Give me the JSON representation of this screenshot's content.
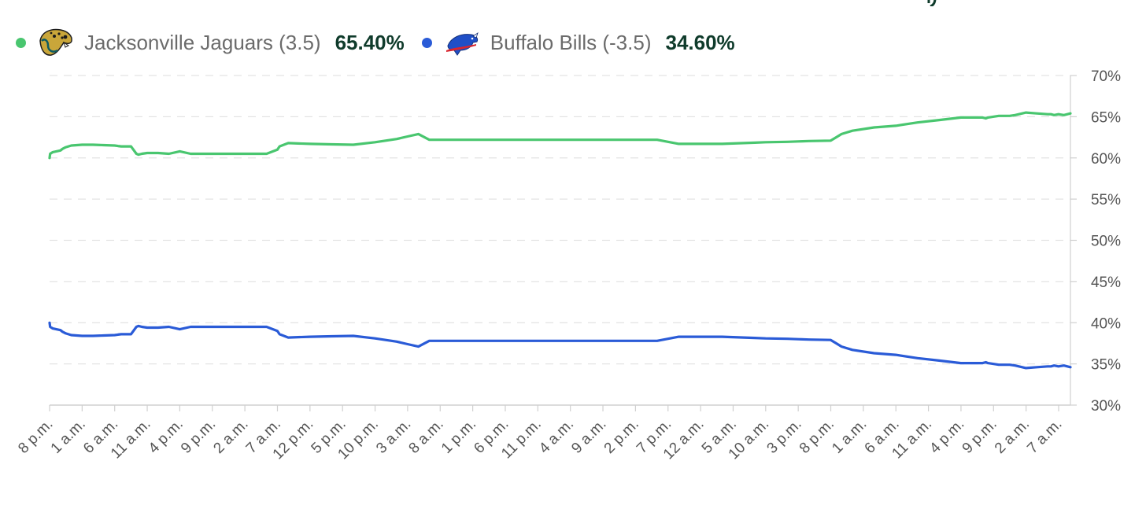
{
  "legend": {
    "team1": {
      "name": "Jacksonville Jaguars (3.5)",
      "pct": "65.40%",
      "color": "#49c66f",
      "logo": "jaguar-head-icon"
    },
    "team2": {
      "name": "Buffalo Bills (-3.5)",
      "pct": "34.60%",
      "color": "#2a5bd7",
      "logo": "charging-buffalo-icon"
    }
  },
  "chart_data": {
    "type": "line",
    "title": "",
    "xlabel": "",
    "ylabel": "",
    "ylim": [
      30,
      70
    ],
    "y_ticks": [
      "70%",
      "65%",
      "60%",
      "55%",
      "50%",
      "45%",
      "40%",
      "35%",
      "30%"
    ],
    "y_tick_values": [
      70,
      65,
      60,
      55,
      50,
      45,
      40,
      35,
      30
    ],
    "grid": true,
    "legend_position": "top-left",
    "x_ticks": [
      "8 p.m.",
      "1 a.m.",
      "6 a.m.",
      "11 a.m.",
      "4 p.m.",
      "9 p.m.",
      "2 a.m.",
      "7 a.m.",
      "12 p.m.",
      "5 p.m.",
      "10 p.m.",
      "3 a.m.",
      "8 a.m.",
      "1 p.m.",
      "6 p.m.",
      "11 p.m.",
      "4 a.m.",
      "9 a.m.",
      "2 p.m.",
      "7 p.m.",
      "12 a.m.",
      "5 a.m.",
      "10 a.m.",
      "3 p.m.",
      "8 p.m.",
      "1 a.m.",
      "6 a.m.",
      "11 a.m.",
      "4 p.m.",
      "9 p.m.",
      "2 a.m.",
      "7 a.m."
    ],
    "x": [
      0,
      0.05,
      0.3,
      1,
      1.2,
      1.5,
      2,
      3,
      4,
      5,
      6,
      6.3,
      6.6,
      7,
      7.5,
      8,
      8.2,
      8.5,
      9,
      10,
      11,
      12,
      13,
      14,
      15,
      17,
      20,
      21,
      21.2,
      22,
      24,
      26,
      28,
      30,
      32,
      33,
      34,
      35,
      36,
      38,
      40,
      42,
      42.5,
      43,
      43.2,
      43.4,
      44,
      44.8,
      46,
      48,
      50,
      52,
      54,
      56,
      58,
      60,
      62,
      64,
      65,
      66,
      68,
      70,
      72,
      72.5,
      73,
      74,
      76,
      78,
      80,
      82,
      84,
      86,
      86.3,
      86.5,
      87.5,
      88.5,
      89,
      90,
      91,
      92,
      92.3,
      92.6,
      93,
      93.5,
      94.1
    ],
    "series": [
      {
        "name": "Jacksonville Jaguars (3.5)",
        "color": "#49c66f",
        "values": [
          60.0,
          60.5,
          60.7,
          60.9,
          61.1,
          61.3,
          61.5,
          61.6,
          61.6,
          61.55,
          61.5,
          61.45,
          61.4,
          61.4,
          61.4,
          60.5,
          60.4,
          60.5,
          60.6,
          60.6,
          60.5,
          60.8,
          60.5,
          60.5,
          60.5,
          60.5,
          60.5,
          61.0,
          61.4,
          61.8,
          61.7,
          61.65,
          61.6,
          61.9,
          62.3,
          62.6,
          62.9,
          62.2,
          62.2,
          62.2,
          62.2,
          62.2,
          62.2,
          62.2,
          62.2,
          62.2,
          62.2,
          62.2,
          62.2,
          62.2,
          62.2,
          62.2,
          62.2,
          62.2,
          61.7,
          61.7,
          61.7,
          61.8,
          61.85,
          61.9,
          61.95,
          62.05,
          62.1,
          62.5,
          62.9,
          63.3,
          63.7,
          63.9,
          64.3,
          64.6,
          64.9,
          64.9,
          64.8,
          64.9,
          65.1,
          65.1,
          65.2,
          65.5,
          65.4,
          65.3,
          65.3,
          65.2,
          65.3,
          65.2,
          65.4
        ]
      },
      {
        "name": "Buffalo Bills (-3.5)",
        "color": "#2a5bd7",
        "values": [
          40.0,
          39.5,
          39.3,
          39.1,
          38.9,
          38.7,
          38.5,
          38.4,
          38.4,
          38.45,
          38.5,
          38.55,
          38.6,
          38.6,
          38.6,
          39.5,
          39.6,
          39.5,
          39.4,
          39.4,
          39.5,
          39.2,
          39.5,
          39.5,
          39.5,
          39.5,
          39.5,
          39.0,
          38.6,
          38.2,
          38.3,
          38.35,
          38.4,
          38.1,
          37.7,
          37.4,
          37.1,
          37.8,
          37.8,
          37.8,
          37.8,
          37.8,
          37.8,
          37.8,
          37.8,
          37.8,
          37.8,
          37.8,
          37.8,
          37.8,
          37.8,
          37.8,
          37.8,
          37.8,
          38.3,
          38.3,
          38.3,
          38.2,
          38.15,
          38.1,
          38.05,
          37.95,
          37.9,
          37.5,
          37.1,
          36.7,
          36.3,
          36.1,
          35.7,
          35.4,
          35.1,
          35.1,
          35.2,
          35.1,
          34.9,
          34.9,
          34.8,
          34.5,
          34.6,
          34.7,
          34.7,
          34.8,
          34.7,
          34.8,
          34.6
        ]
      }
    ]
  }
}
